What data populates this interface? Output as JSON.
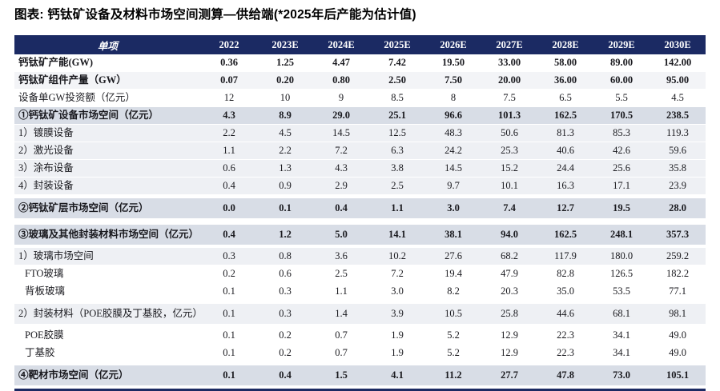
{
  "title": "图表: 钙钛矿设备及材料市场空间测算—供给端(*2025年后产能为估计值)",
  "colors": {
    "header_bg": "#1b2a63",
    "header_text": "#ffffff",
    "section_row_bg": "#d8dde6",
    "sub_row_bg": "#eef0f4",
    "bottom_border": "#1b2a63"
  },
  "chart_data": {
    "type": "table",
    "title": "钙钛矿设备及材料市场空间测算—供给端(*2025年后产能为估计值)",
    "columns": [
      "单项",
      "2022",
      "2023E",
      "2024E",
      "2025E",
      "2026E",
      "2027E",
      "2028E",
      "2029E",
      "2030E"
    ],
    "rows": [
      {
        "label": "钙钛矿产能(GW)",
        "values": [
          "0.36",
          "1.25",
          "4.47",
          "7.42",
          "19.50",
          "33.00",
          "58.00",
          "89.00",
          "142.00"
        ],
        "bold": true,
        "bg": "white",
        "indent": false,
        "gap": false
      },
      {
        "label": "钙钛矿组件产量（GW）",
        "values": [
          "0.07",
          "0.20",
          "0.80",
          "2.50",
          "7.50",
          "20.00",
          "36.00",
          "60.00",
          "95.00"
        ],
        "bold": true,
        "bg": "faint",
        "indent": false,
        "gap": false
      },
      {
        "label": "设备单GW投资额（亿元）",
        "values": [
          "12",
          "10",
          "9",
          "8.5",
          "8",
          "7.5",
          "6.5",
          "5.5",
          "4.5"
        ],
        "bold": false,
        "bg": "white",
        "indent": false,
        "gap": false
      },
      {
        "label": "①钙钛矿设备市场空间（亿元）",
        "values": [
          "4.3",
          "8.9",
          "29.0",
          "25.1",
          "96.6",
          "101.3",
          "162.5",
          "170.5",
          "238.5"
        ],
        "bold": true,
        "bg": "section",
        "indent": false,
        "gap": false
      },
      {
        "label": "1）镀膜设备",
        "values": [
          "2.2",
          "4.5",
          "14.5",
          "12.5",
          "48.3",
          "50.6",
          "81.3",
          "85.3",
          "119.3"
        ],
        "bold": false,
        "bg": "sub",
        "indent": false,
        "gap": false
      },
      {
        "label": "2）激光设备",
        "values": [
          "1.1",
          "2.2",
          "7.2",
          "6.3",
          "24.2",
          "25.3",
          "40.6",
          "42.6",
          "59.6"
        ],
        "bold": false,
        "bg": "sub",
        "indent": false,
        "gap": false
      },
      {
        "label": "3）涂布设备",
        "values": [
          "0.6",
          "1.3",
          "4.3",
          "3.8",
          "14.5",
          "15.2",
          "24.4",
          "25.6",
          "35.8"
        ],
        "bold": false,
        "bg": "sub",
        "indent": false,
        "gap": false
      },
      {
        "label": "4）封装设备",
        "values": [
          "0.4",
          "0.9",
          "2.9",
          "2.5",
          "9.7",
          "10.1",
          "16.3",
          "17.1",
          "23.9"
        ],
        "bold": false,
        "bg": "sub",
        "indent": false,
        "gap": false
      },
      {
        "label": "②钙钛矿层市场空间（亿元）",
        "values": [
          "0.0",
          "0.1",
          "0.4",
          "1.1",
          "3.0",
          "7.4",
          "12.7",
          "19.5",
          "28.0"
        ],
        "bold": true,
        "bg": "section",
        "indent": false,
        "gap": true
      },
      {
        "label": "③玻璃及其他封装材料市场空间（亿元）",
        "values": [
          "0.4",
          "1.2",
          "5.0",
          "14.1",
          "38.1",
          "94.0",
          "162.5",
          "248.1",
          "357.3"
        ],
        "bold": true,
        "bg": "section",
        "indent": false,
        "gap": true
      },
      {
        "label": "1）玻璃市场空间",
        "values": [
          "0.3",
          "0.8",
          "3.6",
          "10.2",
          "27.6",
          "68.2",
          "117.9",
          "180.0",
          "259.2"
        ],
        "bold": false,
        "bg": "sub",
        "indent": false,
        "gap": false
      },
      {
        "label": "FTO玻璃",
        "values": [
          "0.2",
          "0.6",
          "2.5",
          "7.2",
          "19.4",
          "47.9",
          "82.8",
          "126.5",
          "182.2"
        ],
        "bold": false,
        "bg": "white",
        "indent": true,
        "gap": false
      },
      {
        "label": "背板玻璃",
        "values": [
          "0.1",
          "0.3",
          "1.1",
          "3.0",
          "8.2",
          "20.3",
          "35.0",
          "53.5",
          "77.1"
        ],
        "bold": false,
        "bg": "white",
        "indent": true,
        "gap": false
      },
      {
        "label": "2）封装材料（POE胶膜及丁基胶，亿元）",
        "values": [
          "0.1",
          "0.3",
          "1.4",
          "3.9",
          "10.5",
          "25.8",
          "44.6",
          "68.1",
          "98.1"
        ],
        "bold": false,
        "bg": "sub",
        "indent": false,
        "gap": true
      },
      {
        "label": "POE胶膜",
        "values": [
          "0.1",
          "0.2",
          "0.7",
          "1.9",
          "5.2",
          "12.9",
          "22.3",
          "34.1",
          "49.0"
        ],
        "bold": false,
        "bg": "white",
        "indent": true,
        "gap": false
      },
      {
        "label": "丁基胶",
        "values": [
          "0.1",
          "0.2",
          "0.7",
          "1.9",
          "5.2",
          "12.9",
          "22.3",
          "34.1",
          "49.0"
        ],
        "bold": false,
        "bg": "white",
        "indent": true,
        "gap": false
      },
      {
        "label": "④靶材市场空间（亿元）",
        "values": [
          "0.1",
          "0.4",
          "1.5",
          "4.1",
          "11.2",
          "27.7",
          "47.8",
          "73.0",
          "105.1"
        ],
        "bold": true,
        "bg": "section",
        "indent": false,
        "gap": true
      }
    ]
  }
}
